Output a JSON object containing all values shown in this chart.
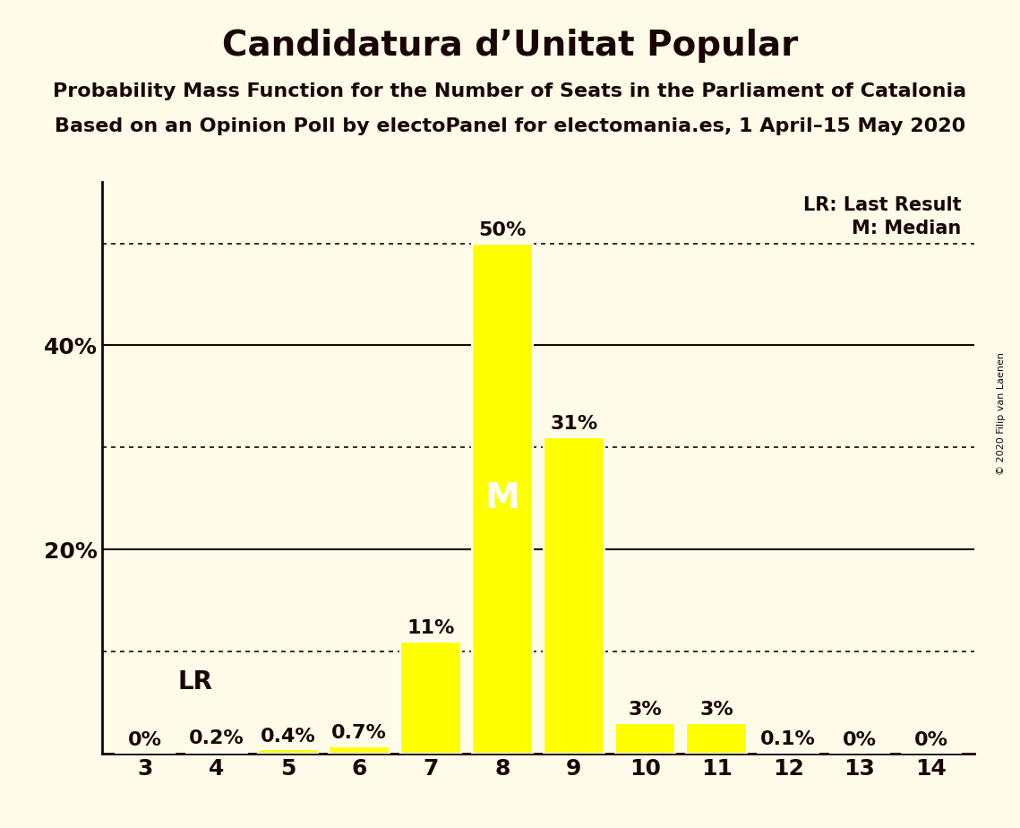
{
  "title": "Candidatura d’Unitat Popular",
  "subtitle1": "Probability Mass Function for the Number of Seats in the Parliament of Catalonia",
  "subtitle2": "Based on an Opinion Poll by electoPanel for electomania.es, 1 April–15 May 2020",
  "copyright": "© 2020 Filip van Laenen",
  "seats": [
    3,
    4,
    5,
    6,
    7,
    8,
    9,
    10,
    11,
    12,
    13,
    14
  ],
  "probabilities": [
    0.0,
    0.2,
    0.4,
    0.7,
    11.0,
    50.0,
    31.0,
    3.0,
    3.0,
    0.1,
    0.0,
    0.0
  ],
  "bar_color": "#FFFF00",
  "bar_edge_color": "#FFFFFF",
  "background_color": "#FEFCE8",
  "text_color": "#1a0505",
  "last_result_seat": 4,
  "median_seat": 8,
  "solid_yticks": [
    20,
    40
  ],
  "dotted_yticks": [
    10,
    30,
    50
  ],
  "legend_lr": "LR: Last Result",
  "legend_m": "M: Median",
  "title_fontsize": 28,
  "subtitle_fontsize": 16,
  "tick_fontsize": 18,
  "bar_label_fontsize": 16,
  "lr_label_fontsize": 20,
  "ylim": [
    0,
    56
  ],
  "xlim": [
    2.4,
    14.6
  ]
}
